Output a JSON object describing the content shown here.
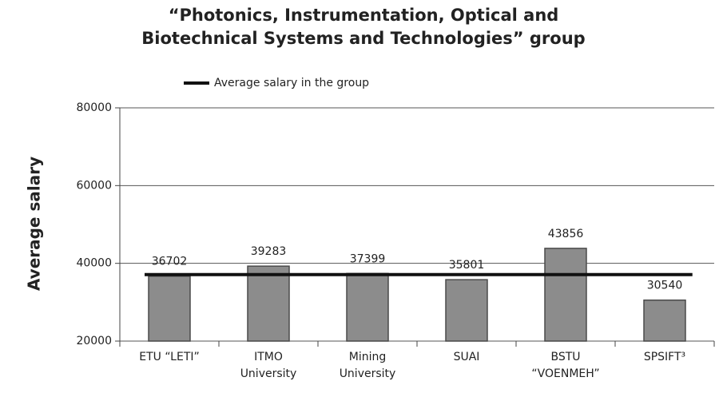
{
  "chart_data": {
    "type": "bar",
    "title": [
      "“Photonics, Instrumentation, Optical and",
      "Biotechnical Systems and Technologies” group"
    ],
    "y_label": "Average salary",
    "categories": [
      [
        "ETU “LETI”"
      ],
      [
        "ITMO",
        "University"
      ],
      [
        "Mining",
        "University"
      ],
      [
        "SUAI"
      ],
      [
        "BSTU",
        "“VOENMEH”"
      ],
      [
        "SPSIFT³"
      ]
    ],
    "values": [
      36702,
      39283,
      37399,
      35801,
      43856,
      30540
    ],
    "color": "#8c8c8c",
    "ylim": [
      20000,
      80000
    ],
    "yticks": [
      20000,
      40000,
      60000,
      80000
    ],
    "grid": true,
    "lines": [
      {
        "name": "Average salary in the group",
        "value": 37100,
        "color": "#111111"
      }
    ],
    "legend": "top"
  }
}
